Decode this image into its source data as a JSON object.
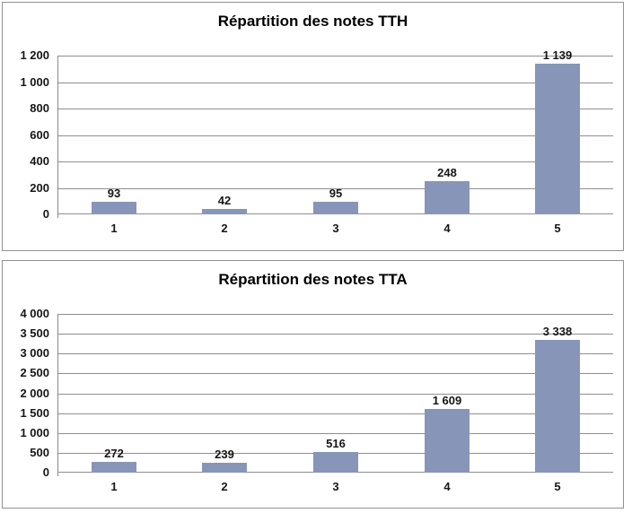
{
  "page": {
    "background": "#ffffff"
  },
  "colors": {
    "bar_fill": "#8795B8",
    "gridline": "#8F8F8F",
    "axis_line": "#8A8A8A",
    "panel_border": "#919191",
    "label_text": "#161616",
    "title_text": "#000000"
  },
  "chart_data": [
    {
      "type": "bar",
      "title": "Répartition des notes TTH",
      "categories": [
        "1",
        "2",
        "3",
        "4",
        "5"
      ],
      "values": [
        93,
        42,
        95,
        248,
        1139
      ],
      "value_labels": [
        "93",
        "42",
        "95",
        "248",
        "1 139"
      ],
      "xlabel": "",
      "ylabel": "",
      "ylim": [
        0,
        1200
      ],
      "ytick_values": [
        0,
        200,
        400,
        600,
        800,
        1000,
        1200
      ],
      "ytick_labels": [
        "0",
        "200",
        "400",
        "600",
        "800",
        "1 000",
        "1 200"
      ],
      "grid": true,
      "legend": false
    },
    {
      "type": "bar",
      "title": "Répartition des notes TTA",
      "categories": [
        "1",
        "2",
        "3",
        "4",
        "5"
      ],
      "values": [
        272,
        239,
        516,
        1609,
        3338
      ],
      "value_labels": [
        "272",
        "239",
        "516",
        "1 609",
        "3 338"
      ],
      "xlabel": "",
      "ylabel": "",
      "ylim": [
        0,
        4000
      ],
      "ytick_values": [
        0,
        500,
        1000,
        1500,
        2000,
        2500,
        3000,
        3500,
        4000
      ],
      "ytick_labels": [
        "0",
        "500",
        "1 000",
        "1 500",
        "2 000",
        "2 500",
        "3 000",
        "3 500",
        "4 000"
      ],
      "grid": true,
      "legend": false
    }
  ]
}
